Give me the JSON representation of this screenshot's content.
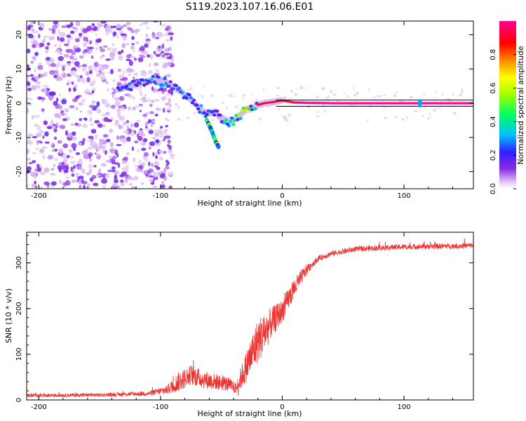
{
  "title": "S119.2023.107.16.06.E01",
  "chart_data": [
    {
      "type": "heatmap",
      "name": "spectrogram",
      "xlabel": "Height of straight line (km)",
      "ylabel": "Frequency (Hz)",
      "xlim": [
        -210,
        157
      ],
      "ylim": [
        -25,
        24
      ],
      "xticks": [
        -200,
        -100,
        0,
        100
      ],
      "yticks": [
        -20,
        -10,
        0,
        10,
        20
      ],
      "colorbar": {
        "label": "Normalized spectral amplitude",
        "range": [
          0,
          1
        ],
        "ticks": [
          0.0,
          0.2,
          0.4,
          0.6,
          0.8
        ],
        "tick_labels": [
          "0.0",
          "0.2",
          "0.4",
          "0.6",
          "0.8"
        ],
        "colors": [
          "#ffffff",
          "#e0c8f4",
          "#8a2be2",
          "#3020ff",
          "#00c0ff",
          "#00ff60",
          "#a0ff00",
          "#ffff00",
          "#ff9000",
          "#ff0000",
          "#ff0090"
        ]
      },
      "ridge": {
        "x": [
          -135,
          -125,
          -115,
          -105,
          -95,
          -85,
          -75,
          -65,
          -60,
          -55,
          -52,
          -48,
          -44,
          -40,
          -35,
          -30,
          -25,
          -20,
          -15,
          -10,
          -5,
          0,
          10,
          20,
          40,
          60,
          80,
          100,
          120,
          140,
          157
        ],
        "f": [
          4,
          5,
          6,
          7,
          6,
          4,
          1,
          -2.5,
          -3,
          -2.5,
          -4,
          -4.5,
          -5.5,
          -5,
          -3.5,
          -2,
          -1.5,
          -0.5,
          0,
          0.2,
          0.5,
          0.8,
          0.2,
          0.1,
          0,
          0,
          0,
          0,
          0,
          0,
          0
        ],
        "amp": [
          0.25,
          0.3,
          0.3,
          0.35,
          0.3,
          0.3,
          0.35,
          0.4,
          0.3,
          0.25,
          0.2,
          0.35,
          0.45,
          0.5,
          0.6,
          0.75,
          0.8,
          0.85,
          0.9,
          0.95,
          0.9,
          0.9,
          0.95,
          1.0,
          1.0,
          1.0,
          1.0,
          1.0,
          1.0,
          1.0,
          1.0
        ]
      },
      "branch": {
        "x": [
          -62,
          -58,
          -55,
          -52
        ],
        "f": [
          -5,
          -8,
          -11,
          -13
        ],
        "amp": 0.35
      },
      "noise": {
        "x_range": [
          -210,
          -100
        ],
        "density": 0.6,
        "amp": 0.25
      }
    },
    {
      "type": "line",
      "name": "snr",
      "xlabel": "Height of straight line (km)",
      "ylabel": "SNR (10 * v/v)",
      "xlim": [
        -210,
        157
      ],
      "ylim": [
        0,
        367
      ],
      "xticks": [
        -200,
        -100,
        0,
        100
      ],
      "yticks": [
        0,
        100,
        200,
        300
      ],
      "color": "#ee3333",
      "trend_x": [
        -210,
        -150,
        -110,
        -95,
        -85,
        -75,
        -65,
        -55,
        -45,
        -38,
        -30,
        -25,
        -20,
        -15,
        -10,
        -5,
        0,
        5,
        10,
        15,
        20,
        25,
        30,
        40,
        60,
        80,
        100,
        120,
        140,
        157
      ],
      "trend_y": [
        10,
        11,
        14,
        22,
        40,
        55,
        45,
        40,
        35,
        25,
        70,
        100,
        130,
        145,
        165,
        180,
        195,
        220,
        245,
        265,
        285,
        298,
        310,
        320,
        330,
        333,
        335,
        336,
        337,
        338
      ],
      "noise_amplitude": [
        4,
        4,
        5,
        10,
        22,
        22,
        20,
        18,
        16,
        12,
        35,
        45,
        50,
        45,
        35,
        30,
        25,
        25,
        22,
        18,
        12,
        8,
        6,
        6,
        6,
        6,
        6,
        6,
        6,
        6
      ]
    }
  ]
}
